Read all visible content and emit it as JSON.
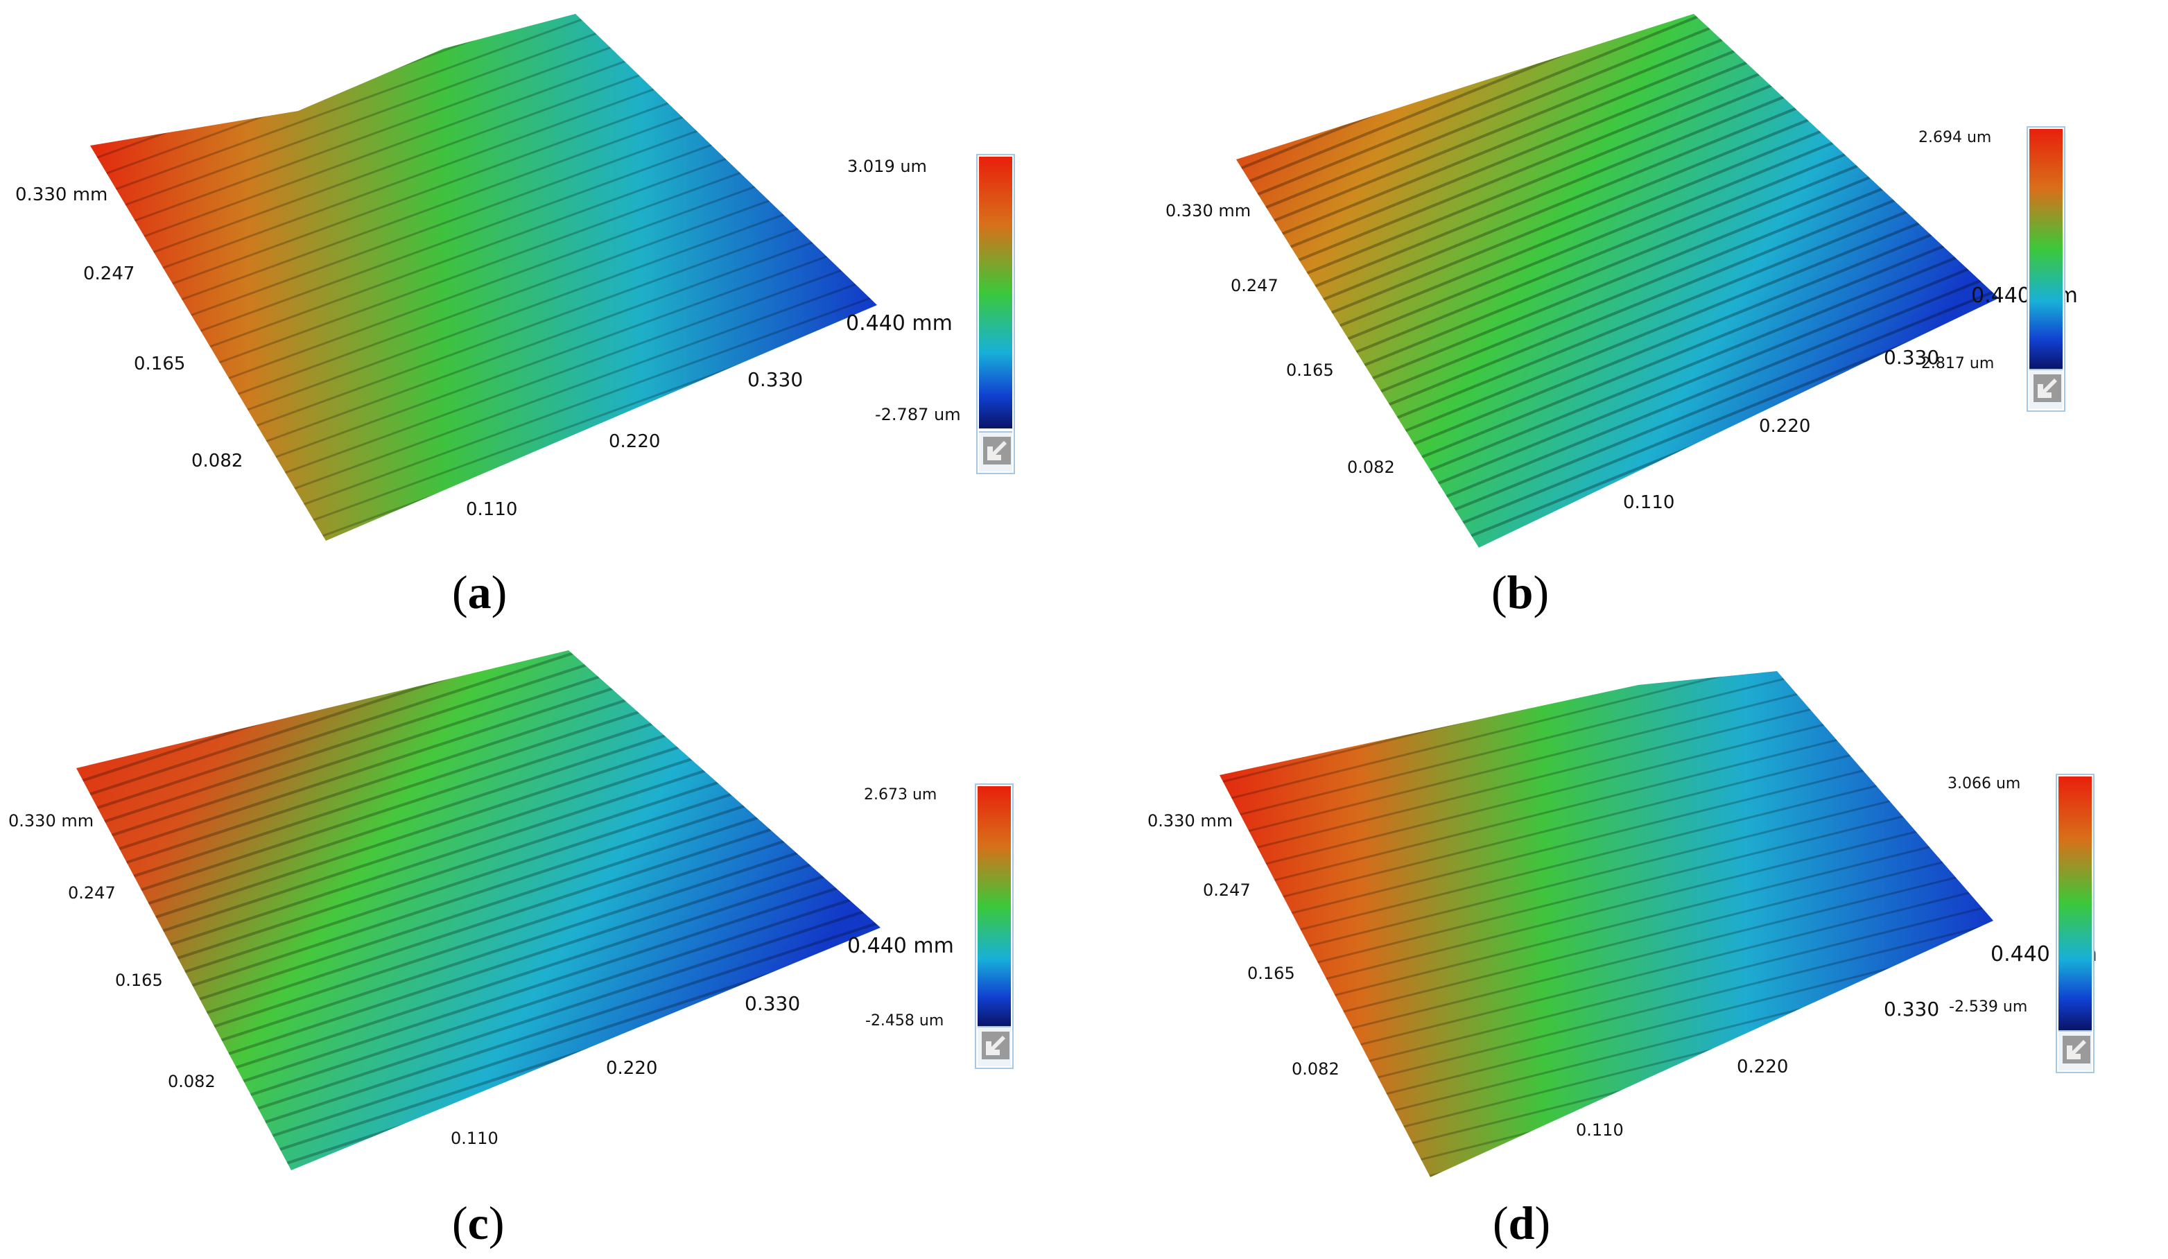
{
  "panels": [
    {
      "id": "a",
      "caption": "a",
      "axis_y_labels": [
        "0.330 mm",
        "0.247",
        "0.165",
        "0.082"
      ],
      "axis_x_labels": [
        "0.110",
        "0.220",
        "0.330",
        "0.440 mm"
      ],
      "height_scale": {
        "max": "3.019 um",
        "min": "-2.787 um"
      },
      "color_button_icon": "arrow-down-left-icon"
    },
    {
      "id": "b",
      "caption": "b",
      "axis_y_labels": [
        "0.330 mm",
        "0.247",
        "0.165",
        "0.082"
      ],
      "axis_x_labels": [
        "0.110",
        "0.220",
        "0.330",
        "0.440 mm"
      ],
      "height_scale": {
        "max": "2.694 um",
        "min": "-2.817 um"
      },
      "color_button_icon": "arrow-down-left-icon"
    },
    {
      "id": "c",
      "caption": "c",
      "axis_y_labels": [
        "0.330 mm",
        "0.247",
        "0.165",
        "0.082"
      ],
      "axis_x_labels": [
        "0.110",
        "0.220",
        "0.330",
        "0.440 mm"
      ],
      "height_scale": {
        "max": "2.673 um",
        "min": "-2.458 um"
      },
      "color_button_icon": "arrow-down-left-icon"
    },
    {
      "id": "d",
      "caption": "d",
      "axis_y_labels": [
        "0.330 mm",
        "0.247",
        "0.165",
        "0.082"
      ],
      "axis_x_labels": [
        "0.110",
        "0.220",
        "0.330",
        "0.440 mm"
      ],
      "height_scale": {
        "max": "3.066 um",
        "min": "-2.539 um"
      },
      "color_button_icon": "arrow-down-left-icon"
    }
  ],
  "colors": {
    "red": "#e8200c",
    "orange": "#d8701a",
    "green": "#3cc83a",
    "cyan": "#18b0d8",
    "blue": "#1040d0",
    "navy": "#0a1468",
    "bar_border": "#a7c7e7"
  }
}
